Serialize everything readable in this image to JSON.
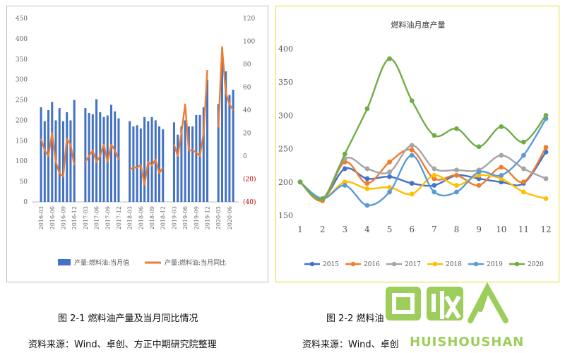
{
  "chart_data": [
    {
      "type": "bar+line",
      "title": "",
      "categories": [
        "2016-01",
        "2016-02",
        "2016-03",
        "2016-04",
        "2016-05",
        "2016-06",
        "2016-07",
        "2016-08",
        "2016-09",
        "2016-10",
        "2016-11",
        "2016-12",
        "2017-01",
        "2017-02",
        "2017-03",
        "2017-04",
        "2017-05",
        "2017-06",
        "2017-07",
        "2017-08",
        "2017-09",
        "2017-10",
        "2017-11",
        "2017-12",
        "2018-01",
        "2018-02",
        "2018-03",
        "2018-04",
        "2018-05",
        "2018-06",
        "2018-07",
        "2018-08",
        "2018-09",
        "2018-10",
        "2018-11",
        "2018-12",
        "2019-01",
        "2019-02",
        "2019-03",
        "2019-04",
        "2019-05",
        "2019-06",
        "2019-07",
        "2019-08",
        "2019-09",
        "2019-10",
        "2019-11",
        "2019-12",
        "2020-01",
        "2020-02",
        "2020-03",
        "2020-04",
        "2020-05",
        "2020-06",
        "2020-07",
        "2020-08"
      ],
      "x_tick_labels": [
        "2016-03",
        "2016-06",
        "2016-09",
        "2016-12",
        "2017-03",
        "2017-06",
        "2017-09",
        "2017-12",
        "2018-03",
        "2018-06",
        "2018-09",
        "2018-12",
        "2019-03",
        "2019-06",
        "2019-09",
        "2019-12",
        "2020-03",
        "2020-06"
      ],
      "x_tick_indices": [
        2,
        5,
        8,
        11,
        14,
        17,
        20,
        23,
        26,
        29,
        32,
        35,
        38,
        41,
        44,
        47,
        50,
        53
      ],
      "series": [
        {
          "name": "产量:燃料油:当月值",
          "kind": "bar",
          "axis": "left",
          "color": "#4472c4",
          "values": [
            null,
            null,
            232,
            198,
            225,
            245,
            200,
            230,
            198,
            220,
            200,
            250,
            null,
            null,
            230,
            218,
            215,
            252,
            220,
            208,
            212,
            238,
            222,
            205,
            null,
            null,
            198,
            185,
            188,
            180,
            208,
            198,
            208,
            200,
            185,
            178,
            null,
            null,
            195,
            165,
            185,
            200,
            185,
            185,
            213,
            213,
            232,
            300,
            null,
            null,
            240,
            352,
            320,
            262,
            275,
            null
          ]
        },
        {
          "name": "产量:燃料油:当月同比",
          "kind": "line",
          "axis": "right",
          "color": "#ed7d31",
          "values": [
            null,
            null,
            15,
            5,
            0,
            20,
            -5,
            -15,
            -18,
            15,
            10,
            -8,
            null,
            null,
            -5,
            0,
            5,
            -5,
            0,
            10,
            -5,
            10,
            5,
            -3,
            null,
            null,
            -12,
            -10,
            -10,
            -8,
            -25,
            -5,
            -8,
            -3,
            -15,
            -10,
            null,
            null,
            10,
            0,
            20,
            45,
            5,
            5,
            3,
            0,
            20,
            75,
            null,
            null,
            25,
            95,
            55,
            45,
            40,
            null
          ]
        }
      ],
      "ylim_left": [
        0,
        450
      ],
      "yticks_left": [
        0,
        50,
        100,
        150,
        200,
        250,
        300,
        350,
        400,
        450
      ],
      "ylim_right": [
        -40,
        120
      ],
      "yticks_right": [
        -40,
        -20,
        0,
        20,
        40,
        60,
        80,
        100,
        120
      ],
      "yticks_right_labels": [
        "(40)",
        "(20)",
        "0",
        "20",
        "40",
        "60",
        "80",
        "100",
        "120"
      ],
      "legend_position": "bottom",
      "grid": false
    },
    {
      "type": "line",
      "title": "燃料油月度产量",
      "x": [
        1,
        2,
        3,
        4,
        5,
        6,
        7,
        8,
        9,
        10,
        11,
        12
      ],
      "series": [
        {
          "name": "2015",
          "color": "#4472c4",
          "values": [
            200,
            175,
            220,
            205,
            208,
            198,
            195,
            210,
            205,
            200,
            198,
            245
          ]
        },
        {
          "name": "2016",
          "color": "#ed7d31",
          "values": [
            200,
            172,
            230,
            198,
            230,
            248,
            205,
            210,
            195,
            222,
            200,
            252
          ]
        },
        {
          "name": "2017",
          "color": "#a5a5a5",
          "values": [
            200,
            175,
            235,
            220,
            215,
            255,
            220,
            218,
            218,
            240,
            220,
            205
          ]
        },
        {
          "name": "2018",
          "color": "#ffc000",
          "values": [
            200,
            175,
            200,
            190,
            192,
            182,
            210,
            195,
            210,
            205,
            185,
            175
          ]
        },
        {
          "name": "2019",
          "color": "#5b9bd5",
          "values": [
            200,
            175,
            195,
            165,
            185,
            240,
            185,
            185,
            215,
            210,
            240,
            295
          ]
        },
        {
          "name": "2020",
          "color": "#70ad47",
          "values": [
            200,
            175,
            242,
            310,
            385,
            322,
            270,
            280,
            253,
            283,
            260,
            300
          ]
        }
      ],
      "ylim": [
        150,
        400
      ],
      "yticks": [
        150,
        200,
        250,
        300,
        350,
        400
      ],
      "xticks": [
        1,
        2,
        3,
        4,
        5,
        6,
        7,
        8,
        9,
        10,
        11,
        12
      ],
      "legend_position": "bottom",
      "grid": false
    }
  ],
  "captions": {
    "fig1_title": "图 2-1  燃料油产量及当月同比情况",
    "fig1_source": "资料来源：Wind、卓创、方正中期研究院整理",
    "fig2_title": "图 2-2  燃料油",
    "fig2_source": "资料来源：Wind、卓创"
  },
  "watermark": {
    "text": "HUISHOUSHANG"
  }
}
